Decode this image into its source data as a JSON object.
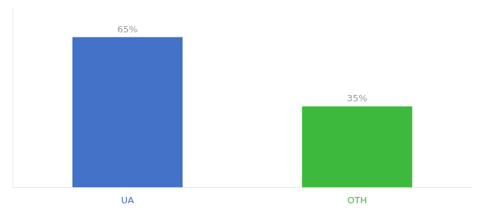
{
  "chart_data": {
    "type": "bar",
    "categories": [
      "UA",
      "OTH"
    ],
    "values": [
      65,
      35
    ],
    "value_labels": [
      "65%",
      "35%"
    ],
    "colors": [
      "#4472c9",
      "#3dba3d"
    ],
    "data_labels": true,
    "ylim": [
      0,
      78
    ],
    "grid": false,
    "tick_labels": "x"
  }
}
